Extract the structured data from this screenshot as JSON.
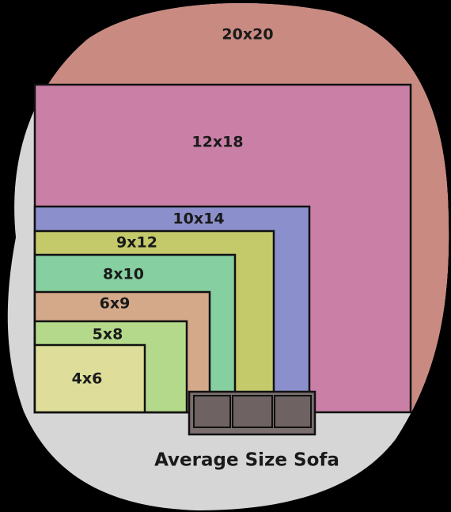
{
  "nodes": [
    {
      "label": "20x20"
    },
    {
      "label": "12x18"
    },
    {
      "label": "10x14"
    },
    {
      "label": "9x12"
    },
    {
      "label": "8x10"
    },
    {
      "label": "6x9"
    },
    {
      "label": "5x8"
    },
    {
      "label": "4x6"
    }
  ],
  "caption": "Average Size Sofa"
}
